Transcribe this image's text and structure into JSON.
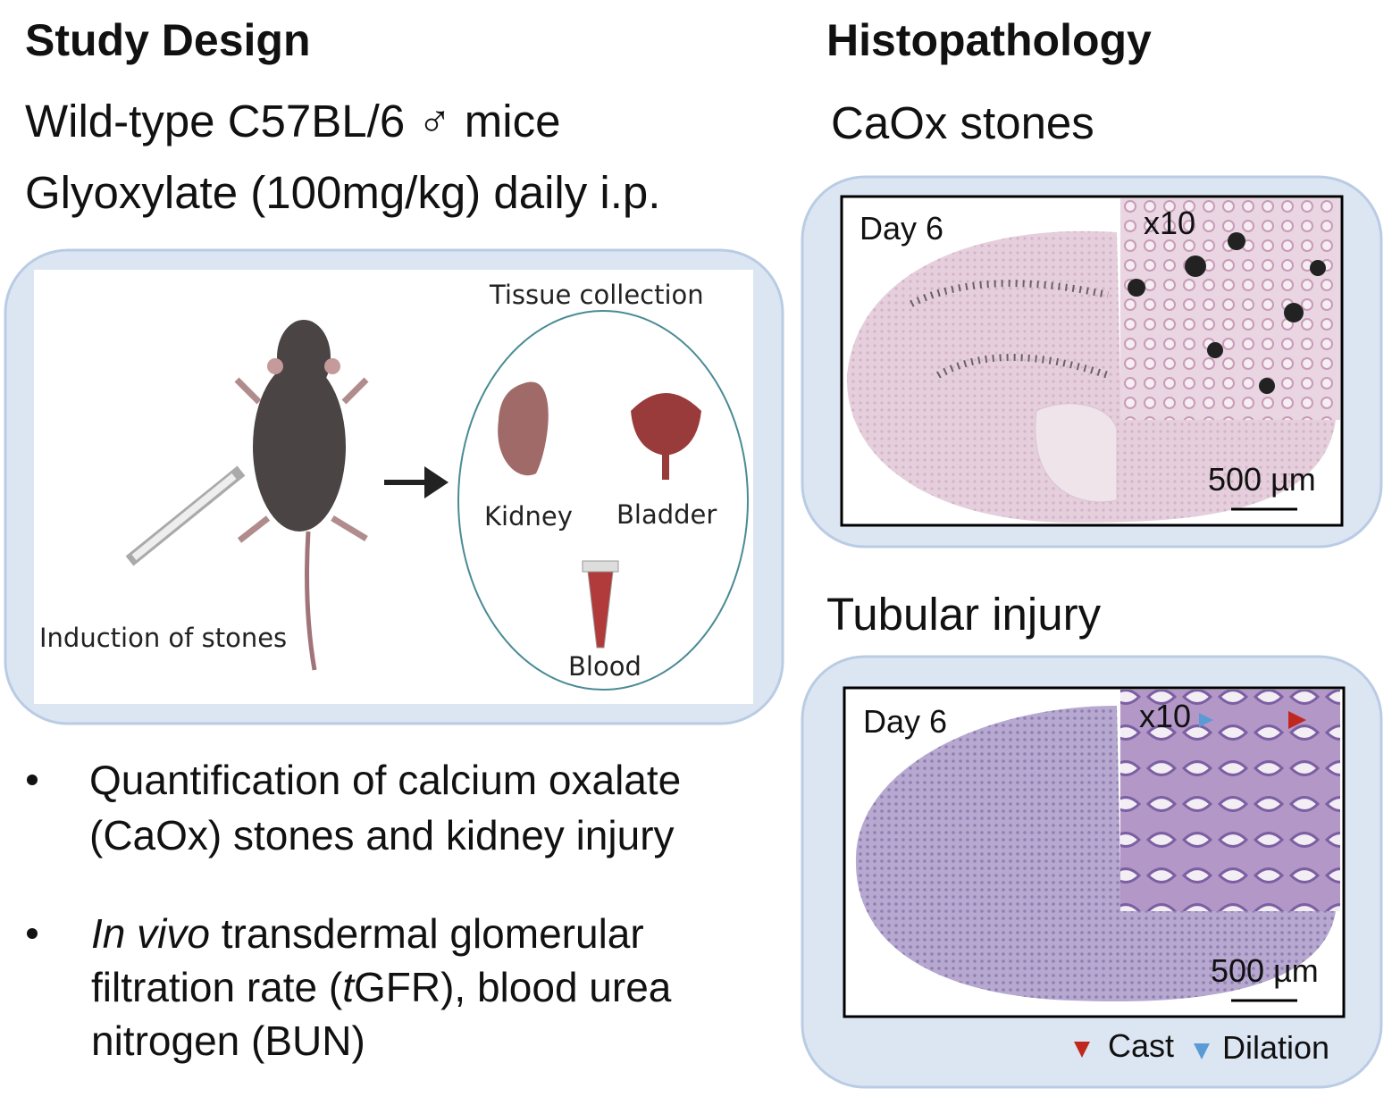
{
  "study_design": {
    "title": "Study Design",
    "lines": [
      "Wild-type C57BL/6 ♂ mice",
      "Glyoxylate (100mg/kg) daily i.p."
    ],
    "diagram": {
      "tissue_collection": "Tissue collection",
      "kidney": "Kidney",
      "bladder": "Bladder",
      "blood": "Blood",
      "induction": "Induction of stones"
    },
    "bullets": [
      {
        "lines": [
          "Quantification of calcium oxalate",
          "(CaOx) stones and kidney injury"
        ]
      },
      {
        "lines": [
          [
            "In vivo",
            " transdermal glomerular"
          ],
          [
            "filtration rate (",
            "t",
            "GFR), blood urea"
          ],
          [
            "nitrogen (BUN)"
          ]
        ]
      }
    ]
  },
  "histopathology": {
    "title": "Histopathology",
    "panels": [
      {
        "title": "CaOx stones",
        "day": "Day 6",
        "magnification": "x10",
        "scale": "500 µm"
      },
      {
        "title": "Tubular injury",
        "day": "Day 6",
        "magnification": "x10",
        "scale": "500 µm",
        "legend": [
          "Cast",
          "Dilation"
        ]
      }
    ]
  }
}
